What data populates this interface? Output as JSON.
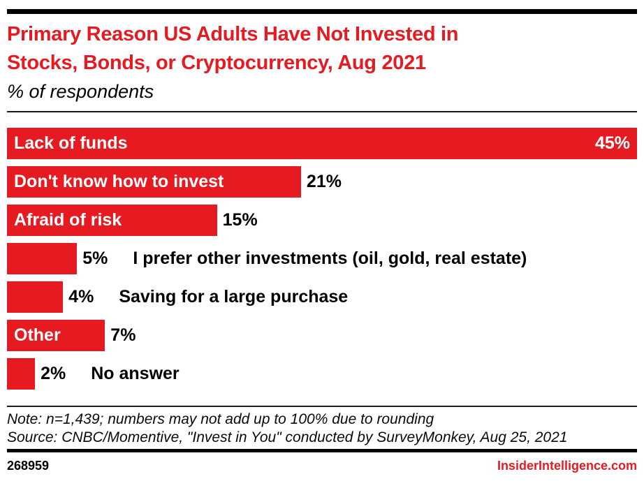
{
  "colors": {
    "brand_red": "#e61b22",
    "bar_red": "#e61b22",
    "text_black": "#000000",
    "bar_label_white": "#ffffff"
  },
  "header": {
    "title_line1": "Primary Reason US Adults Have Not Invested in",
    "title_line2": "Stocks, Bonds, or Cryptocurrency, Aug 2021",
    "subtitle": "% of respondents"
  },
  "chart_data": {
    "type": "bar",
    "orientation": "horizontal",
    "title": "Primary Reason US Adults Have Not Invested in Stocks, Bonds, or Cryptocurrency, Aug 2021",
    "subtitle": "% of respondents",
    "unit": "%",
    "xlim": [
      0,
      45
    ],
    "grid": false,
    "legend": false,
    "categories": [
      "Lack of funds",
      "Don't know how to invest",
      "Afraid of risk",
      "I prefer other investments (oil, gold, real estate)",
      "Saving for a large purchase",
      "Other",
      "No answer"
    ],
    "values": [
      45,
      21,
      15,
      5,
      4,
      7,
      2
    ],
    "value_labels": [
      "45%",
      "21%",
      "15%",
      "5%",
      "4%",
      "7%",
      "2%"
    ],
    "label_inside_bar": [
      true,
      true,
      true,
      false,
      false,
      true,
      false
    ],
    "value_inside_bar": [
      true,
      false,
      false,
      false,
      false,
      false,
      false
    ]
  },
  "footer": {
    "note": "Note: n=1,439; numbers may not add up to 100% due to rounding",
    "source": "Source: CNBC/Momentive, \"Invest in You\" conducted by SurveyMonkey, Aug 25, 2021",
    "chart_id": "268959",
    "site": "InsiderIntelligence.com"
  }
}
